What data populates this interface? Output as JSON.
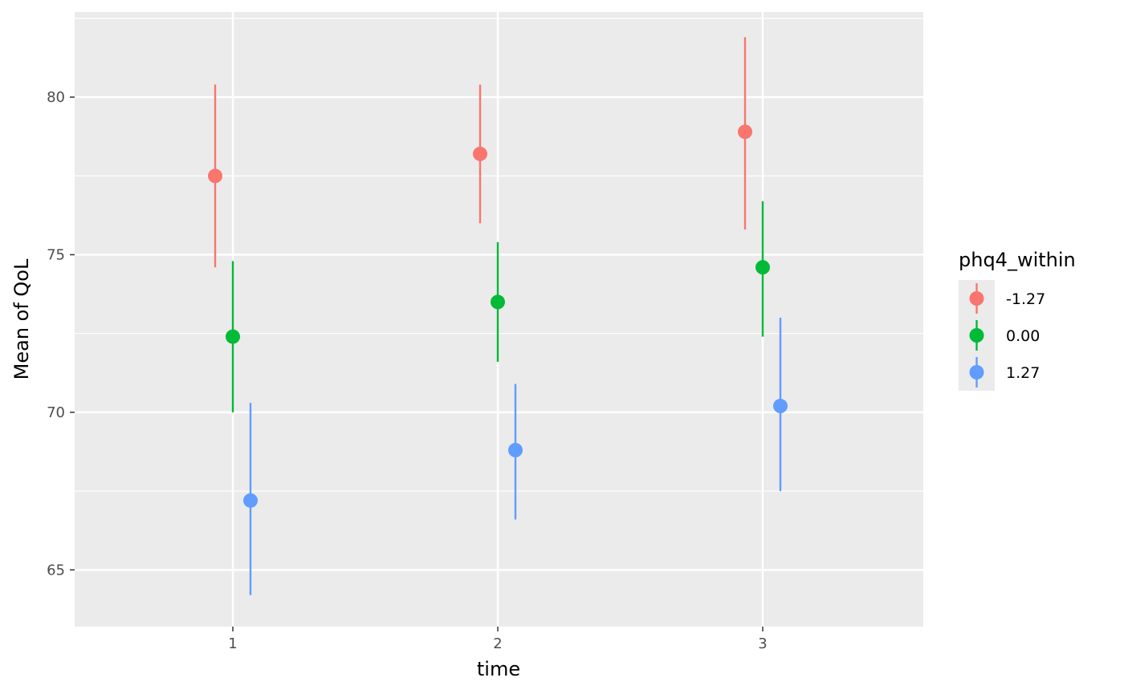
{
  "chart_data": {
    "type": "scatter",
    "subtype": "pointrange",
    "title": "",
    "xlabel": "time",
    "ylabel": "Mean of QoL",
    "x_categories": [
      "1",
      "2",
      "3"
    ],
    "y_ticks": [
      "65",
      "70",
      "75",
      "80"
    ],
    "ylim": [
      63.2,
      82.7
    ],
    "grid": true,
    "background": "#ebebeb",
    "legend": {
      "title": "phq4_within",
      "position": "right"
    },
    "series": [
      {
        "name": "-1.27",
        "color": "#f8766d",
        "points": [
          {
            "x": "1",
            "y": 77.5,
            "ymin": 74.6,
            "ymax": 80.4
          },
          {
            "x": "2",
            "y": 78.2,
            "ymin": 76.0,
            "ymax": 80.4
          },
          {
            "x": "3",
            "y": 78.9,
            "ymin": 75.8,
            "ymax": 81.9
          }
        ]
      },
      {
        "name": "0.00",
        "color": "#00ba38",
        "points": [
          {
            "x": "1",
            "y": 72.4,
            "ymin": 70.0,
            "ymax": 74.8
          },
          {
            "x": "2",
            "y": 73.5,
            "ymin": 71.6,
            "ymax": 75.4
          },
          {
            "x": "3",
            "y": 74.6,
            "ymin": 72.4,
            "ymax": 76.7
          }
        ]
      },
      {
        "name": "1.27",
        "color": "#619cff",
        "points": [
          {
            "x": "1",
            "y": 67.2,
            "ymin": 64.2,
            "ymax": 70.3
          },
          {
            "x": "2",
            "y": 68.8,
            "ymin": 66.6,
            "ymax": 70.9
          },
          {
            "x": "3",
            "y": 70.2,
            "ymin": 67.5,
            "ymax": 73.0
          }
        ]
      }
    ]
  }
}
